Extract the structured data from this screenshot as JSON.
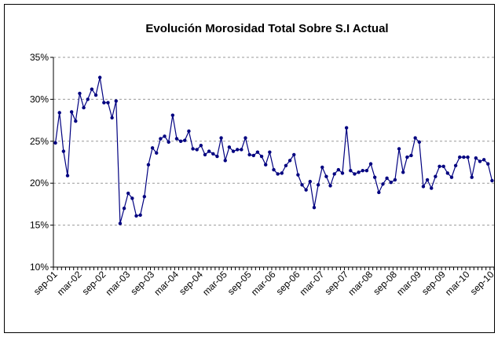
{
  "chart_data": {
    "type": "line",
    "title": "Evolución Morosidad Total Sobre S.I Actual",
    "categories": [
      "sep-01",
      null,
      null,
      null,
      null,
      null,
      "mar-02",
      null,
      null,
      null,
      null,
      null,
      "sep-02",
      null,
      null,
      null,
      null,
      null,
      "mar-03",
      null,
      null,
      null,
      null,
      null,
      "sep-03",
      null,
      null,
      null,
      null,
      null,
      "mar-04",
      null,
      null,
      null,
      null,
      null,
      "sep-04",
      null,
      null,
      null,
      null,
      null,
      "mar-05",
      null,
      null,
      null,
      null,
      null,
      "sep-05",
      null,
      null,
      null,
      null,
      null,
      "mar-06",
      null,
      null,
      null,
      null,
      null,
      "sep-06",
      null,
      null,
      null,
      null,
      null,
      "mar-07",
      null,
      null,
      null,
      null,
      null,
      "sep-07",
      null,
      null,
      null,
      null,
      null,
      "mar-08",
      null,
      null,
      null,
      null,
      null,
      "sep-08",
      null,
      null,
      null,
      null,
      null,
      "mar-09",
      null,
      null,
      null,
      null,
      null,
      "sep-09",
      null,
      null,
      null,
      null,
      null,
      "mar-10",
      null,
      null,
      null,
      null,
      null,
      "sep-10"
    ],
    "series": [
      {
        "color": "#000080",
        "values": [
          24.8,
          28.4,
          23.8,
          20.9,
          28.5,
          27.4,
          30.7,
          29.0,
          30.0,
          31.2,
          30.5,
          32.6,
          29.6,
          29.6,
          27.8,
          29.8,
          15.2,
          17.0,
          18.8,
          18.2,
          16.1,
          16.2,
          18.4,
          22.2,
          24.2,
          23.6,
          25.3,
          25.6,
          24.9,
          28.1,
          25.3,
          25.0,
          25.1,
          26.2,
          24.1,
          24.0,
          24.5,
          23.4,
          23.8,
          23.5,
          23.2,
          25.4,
          22.7,
          24.3,
          23.8,
          24.0,
          24.0,
          25.4,
          23.4,
          23.3,
          23.7,
          23.2,
          22.2,
          23.7,
          21.6,
          21.1,
          21.2,
          22.1,
          22.7,
          23.4,
          21.0,
          19.8,
          19.2,
          20.2,
          17.1,
          19.8,
          21.9,
          20.8,
          19.7,
          21.1,
          21.6,
          21.2,
          26.6,
          21.5,
          21.1,
          21.3,
          21.5,
          21.5,
          22.3,
          20.7,
          18.9,
          19.9,
          20.6,
          20.1,
          20.4,
          24.1,
          21.3,
          23.1,
          23.3,
          25.4,
          24.9,
          19.6,
          20.4,
          19.4,
          20.8,
          22.0,
          22.0,
          21.2,
          20.7,
          22.1,
          23.1,
          23.1,
          23.1,
          20.7,
          23.0,
          22.6,
          22.8,
          22.3,
          20.3
        ]
      }
    ],
    "ylim": [
      10,
      35
    ],
    "yticks": [
      {
        "value": 10,
        "label": "10%"
      },
      {
        "value": 15,
        "label": "15%"
      },
      {
        "value": 20,
        "label": "20%"
      },
      {
        "value": 25,
        "label": "25%"
      },
      {
        "value": 30,
        "label": "30%"
      },
      {
        "value": 35,
        "label": "35%"
      }
    ],
    "grid": true
  }
}
